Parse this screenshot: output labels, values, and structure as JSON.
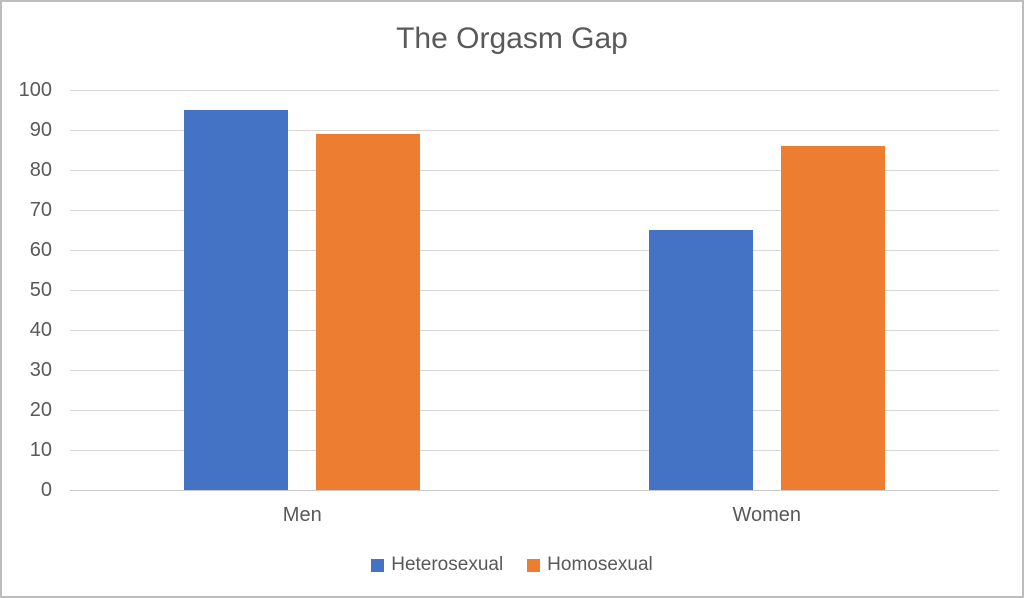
{
  "chart_data": {
    "type": "bar",
    "title": "The Orgasm Gap",
    "categories": [
      "Men",
      "Women"
    ],
    "series": [
      {
        "name": "Heterosexual",
        "color": "#4472C4",
        "values": [
          95,
          65
        ]
      },
      {
        "name": "Homosexual",
        "color": "#ED7D31",
        "values": [
          89,
          86
        ]
      }
    ],
    "xlabel": "",
    "ylabel": "",
    "ylim": [
      0,
      100
    ],
    "yticks": [
      0,
      10,
      20,
      30,
      40,
      50,
      60,
      70,
      80,
      90,
      100
    ],
    "grid": true,
    "legend_position": "bottom"
  },
  "frame": {
    "background": "#ffffff",
    "border_color": "#bdbdbd",
    "text_color": "#595959",
    "gridline_color": "#d9d9d9",
    "axis_line_color": "#c9c9c9"
  }
}
